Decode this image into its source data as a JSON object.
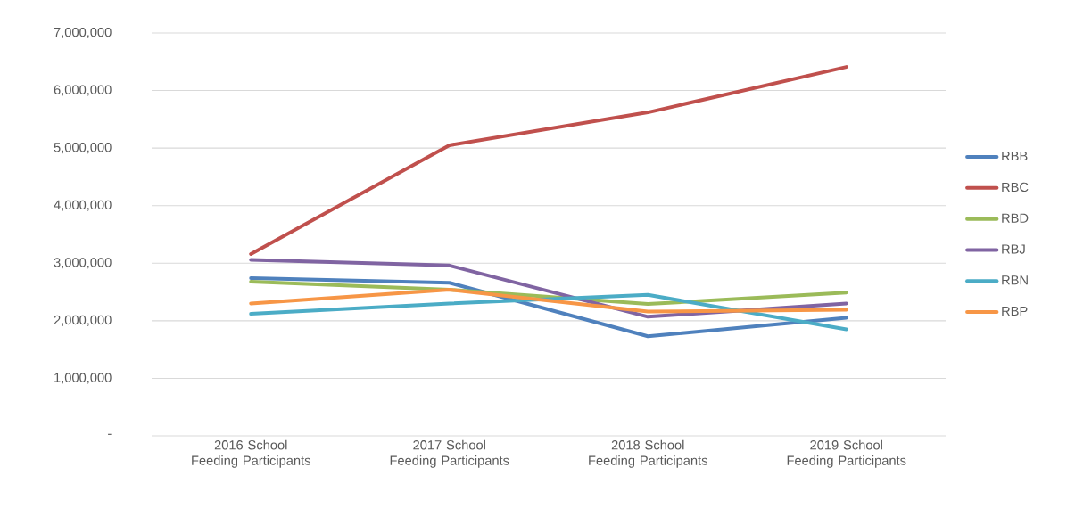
{
  "chart_data": {
    "type": "line",
    "categories": [
      "2016 School Feeding Participants",
      "2017 School Feeding Participants",
      "2018 School Feeding Participants",
      "2019 School Feeding Participants"
    ],
    "series": [
      {
        "name": "RBB",
        "color": "#4f81bd",
        "values": [
          2740000,
          2660000,
          1730000,
          2050000
        ]
      },
      {
        "name": "RBC",
        "color": "#c0504d",
        "values": [
          3160000,
          5050000,
          5620000,
          6410000
        ]
      },
      {
        "name": "RBD",
        "color": "#9bbb59",
        "values": [
          2680000,
          2540000,
          2290000,
          2490000
        ]
      },
      {
        "name": "RBJ",
        "color": "#8064a2",
        "values": [
          3060000,
          2960000,
          2070000,
          2300000
        ]
      },
      {
        "name": "RBN",
        "color": "#4bacc6",
        "values": [
          2120000,
          2300000,
          2450000,
          1850000
        ]
      },
      {
        "name": "RBP",
        "color": "#f79646",
        "values": [
          2300000,
          2540000,
          2160000,
          2190000
        ]
      }
    ],
    "ylim": [
      0,
      7000000
    ],
    "yticks": [
      {
        "value": 0,
        "label": "-"
      },
      {
        "value": 1000000,
        "label": "1,000,000"
      },
      {
        "value": 2000000,
        "label": "2,000,000"
      },
      {
        "value": 3000000,
        "label": "3,000,000"
      },
      {
        "value": 4000000,
        "label": "4,000,000"
      },
      {
        "value": 5000000,
        "label": "5,000,000"
      },
      {
        "value": 6000000,
        "label": "6,000,000"
      },
      {
        "value": 7000000,
        "label": "7,000,000"
      }
    ],
    "grid": "y",
    "legend": "right",
    "marker": "none",
    "line_style": "solid"
  }
}
